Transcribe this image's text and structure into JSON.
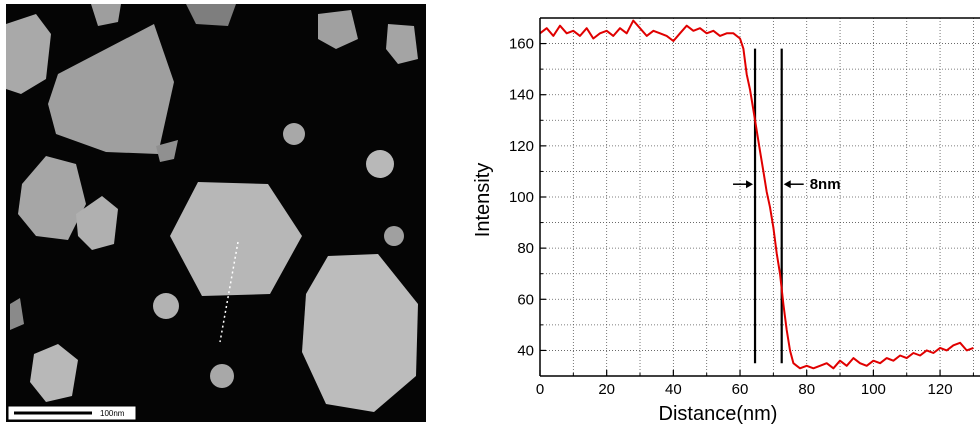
{
  "micrograph": {
    "scale_bar_label": "100nm",
    "colors": {
      "background": "#050505",
      "particle": "#b9b9b9",
      "scale_box": "#ffffff"
    }
  },
  "chart_data": {
    "type": "line",
    "title": "",
    "xlabel": "Distance(nm)",
    "ylabel": "Intensity",
    "xlim": [
      0,
      130
    ],
    "ylim": [
      30,
      170
    ],
    "grid": true,
    "x_ticks": [
      0,
      20,
      40,
      60,
      80,
      100,
      120
    ],
    "x_tick_labels": [
      "0",
      "20",
      "40",
      "60",
      "80",
      "100",
      "120"
    ],
    "y_ticks": [
      40,
      60,
      80,
      100,
      120,
      140,
      160
    ],
    "y_tick_labels": [
      "40",
      "60",
      "80",
      "100",
      "120",
      "140",
      "160"
    ],
    "series": [
      {
        "color": "#e00000",
        "x": [
          0,
          2,
          4,
          6,
          8,
          10,
          12,
          14,
          16,
          18,
          20,
          22,
          24,
          26,
          28,
          30,
          32,
          34,
          36,
          38,
          40,
          42,
          44,
          46,
          48,
          50,
          52,
          54,
          56,
          58,
          60,
          61,
          62,
          63,
          64,
          65,
          66,
          67,
          68,
          69,
          70,
          71,
          72,
          73,
          74,
          75,
          76,
          77,
          78,
          80,
          82,
          84,
          86,
          88,
          90,
          92,
          94,
          96,
          98,
          100,
          102,
          104,
          106,
          108,
          110,
          112,
          114,
          116,
          118,
          120,
          122,
          124,
          126,
          128,
          130
        ],
        "y": [
          164,
          166,
          163,
          167,
          164,
          165,
          163,
          166,
          162,
          164,
          165,
          163,
          166,
          164,
          169,
          166,
          163,
          165,
          164,
          163,
          161,
          164,
          167,
          165,
          166,
          164,
          165,
          163,
          164,
          164,
          162,
          158,
          148,
          142,
          134,
          126,
          118,
          110,
          102,
          96,
          88,
          78,
          70,
          58,
          48,
          40,
          35,
          34,
          33,
          34,
          33,
          34,
          35,
          33,
          36,
          34,
          37,
          35,
          34,
          36,
          35,
          37,
          36,
          38,
          37,
          39,
          38,
          40,
          39,
          41,
          40,
          42,
          43,
          40,
          41
        ]
      }
    ],
    "vertical_markers": [
      64.5,
      72.5
    ],
    "annotations": [
      {
        "text": "8nm",
        "x": 79,
        "y": 107
      }
    ]
  }
}
